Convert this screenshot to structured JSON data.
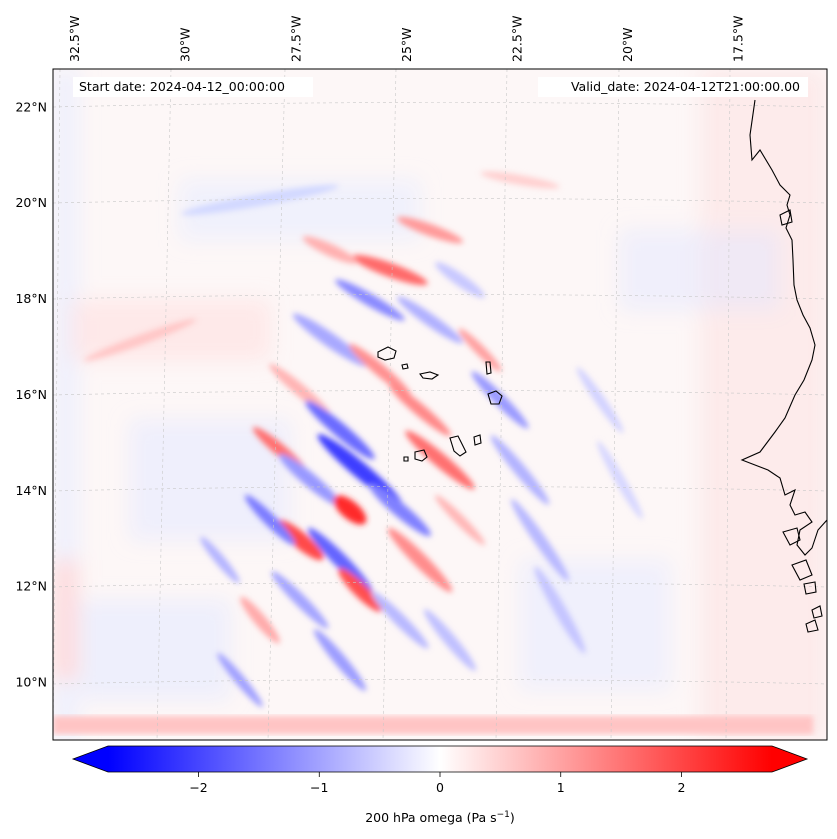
{
  "header": {
    "start_date": "Start date: 2024-04-12_00:00:00",
    "valid_date": "Valid_date: 2024-04-12T21:00:00.00"
  },
  "map": {
    "lon_range": [
      -33.0,
      -15.5
    ],
    "lat_range": [
      8.8,
      22.8
    ],
    "lon_ticks": [
      {
        "value": -32.5,
        "label": "32.5°W"
      },
      {
        "value": -30.0,
        "label": "30°W"
      },
      {
        "value": -27.5,
        "label": "27.5°W"
      },
      {
        "value": -25.0,
        "label": "25°W"
      },
      {
        "value": -22.5,
        "label": "22.5°W"
      },
      {
        "value": -20.0,
        "label": "20°W"
      },
      {
        "value": -17.5,
        "label": "17.5°W"
      }
    ],
    "lat_ticks": [
      {
        "value": 22,
        "label": "22°N"
      },
      {
        "value": 20,
        "label": "20°N"
      },
      {
        "value": 18,
        "label": "18°N"
      },
      {
        "value": 16,
        "label": "16°N"
      },
      {
        "value": 14,
        "label": "14°N"
      },
      {
        "value": 12,
        "label": "12°N"
      },
      {
        "value": 10,
        "label": "10°N"
      }
    ]
  },
  "colorbar": {
    "min": -2.75,
    "max": 2.75,
    "ticks": [
      {
        "value": -2,
        "label": "−2"
      },
      {
        "value": -1,
        "label": "−1"
      },
      {
        "value": 0,
        "label": "0"
      },
      {
        "value": 1,
        "label": "1"
      },
      {
        "value": 2,
        "label": "2"
      }
    ],
    "label_main": "200 hPa omega (Pa s",
    "label_sup": "−1",
    "label_end": ")",
    "colors": {
      "negative": "#0000ff",
      "zero": "#ffffff",
      "positive": "#ff0000"
    }
  }
}
